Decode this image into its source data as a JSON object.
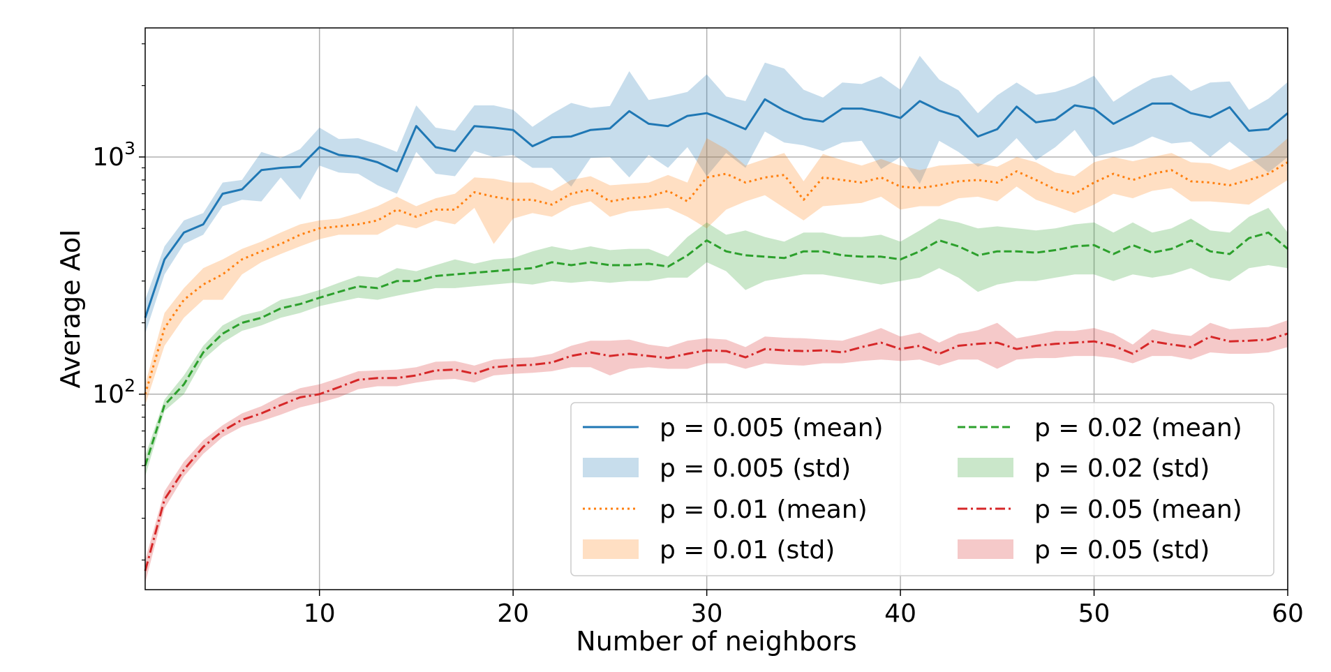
{
  "chart_data": {
    "type": "line",
    "xlabel": "Number of neighbors",
    "ylabel": "Average AoI",
    "xlim": [
      1,
      60
    ],
    "ylim": [
      15,
      3500
    ],
    "yscale": "log",
    "grid": true,
    "legend_position": "lower-right",
    "legend_columns": 2,
    "x_ticks": [
      10,
      20,
      30,
      40,
      50,
      60
    ],
    "y_ticks": [
      {
        "value": 100,
        "base": "10",
        "exp": "2"
      },
      {
        "value": 1000,
        "base": "10",
        "exp": "3"
      }
    ],
    "series": [
      {
        "name": "p = 0.005 (mean)",
        "std_name": "p = 0.005 (std)",
        "color": "#1f77b4",
        "dash": "solid",
        "mean": [
          210,
          370,
          480,
          520,
          700,
          730,
          880,
          900,
          910,
          1100,
          1020,
          1000,
          950,
          870,
          1350,
          1100,
          1060,
          1350,
          1330,
          1300,
          1110,
          1210,
          1220,
          1300,
          1320,
          1560,
          1380,
          1350,
          1490,
          1530,
          1420,
          1310,
          1750,
          1570,
          1450,
          1410,
          1600,
          1600,
          1540,
          1460,
          1720,
          1570,
          1480,
          1220,
          1310,
          1630,
          1400,
          1440,
          1650,
          1600,
          1380,
          1520,
          1680,
          1680,
          1530,
          1470,
          1620,
          1290,
          1310,
          1530
        ],
        "lower": [
          180,
          320,
          430,
          470,
          620,
          660,
          650,
          820,
          660,
          920,
          860,
          850,
          760,
          700,
          1050,
          850,
          830,
          1060,
          1000,
          1020,
          900,
          900,
          750,
          990,
          1000,
          820,
          1020,
          900,
          1100,
          830,
          1040,
          900,
          1280,
          1150,
          1120,
          1060,
          1150,
          1170,
          890,
          1000,
          770,
          1170,
          1050,
          910,
          1000,
          1200,
          970,
          1100,
          1300,
          1000,
          1050,
          1110,
          1220,
          1140,
          1160,
          1000,
          1160,
          1000,
          860,
          1000
        ],
        "upper": [
          250,
          420,
          540,
          580,
          780,
          800,
          1050,
          990,
          1080,
          1330,
          1190,
          1200,
          1130,
          1050,
          1650,
          1330,
          1290,
          1650,
          1650,
          1580,
          1340,
          1520,
          1690,
          1610,
          1640,
          2300,
          1740,
          1800,
          1880,
          2230,
          1800,
          1720,
          2500,
          2360,
          1920,
          1780,
          2060,
          2030,
          2190,
          1920,
          2670,
          2120,
          1910,
          1530,
          1820,
          2060,
          1830,
          1880,
          2000,
          2200,
          1710,
          1930,
          2140,
          2220,
          1900,
          2060,
          2080,
          1580,
          1760,
          2070
        ]
      },
      {
        "name": "p = 0.01 (mean)",
        "std_name": "p = 0.01 (std)",
        "color": "#ff7f0e",
        "dash": "dotted",
        "mean": [
          100,
          190,
          250,
          290,
          320,
          370,
          400,
          430,
          470,
          500,
          510,
          520,
          540,
          600,
          560,
          600,
          600,
          710,
          680,
          660,
          660,
          630,
          700,
          730,
          650,
          670,
          680,
          720,
          650,
          820,
          850,
          780,
          820,
          840,
          660,
          820,
          800,
          780,
          820,
          750,
          740,
          760,
          790,
          800,
          780,
          870,
          800,
          730,
          700,
          780,
          850,
          800,
          850,
          880,
          790,
          780,
          760,
          800,
          850,
          950
        ],
        "lower": [
          90,
          160,
          210,
          250,
          250,
          320,
          360,
          390,
          420,
          450,
          470,
          470,
          470,
          520,
          500,
          540,
          520,
          610,
          430,
          550,
          580,
          560,
          620,
          650,
          560,
          590,
          600,
          610,
          560,
          500,
          600,
          650,
          690,
          610,
          540,
          620,
          630,
          640,
          680,
          600,
          620,
          620,
          670,
          680,
          650,
          750,
          660,
          620,
          580,
          630,
          700,
          670,
          720,
          740,
          650,
          650,
          640,
          630,
          710,
          800
        ],
        "upper": [
          110,
          220,
          280,
          340,
          370,
          410,
          440,
          480,
          520,
          540,
          550,
          580,
          620,
          680,
          620,
          670,
          700,
          820,
          810,
          780,
          780,
          720,
          800,
          830,
          760,
          770,
          780,
          840,
          780,
          1200,
          1080,
          920,
          980,
          1040,
          790,
          1030,
          970,
          920,
          980,
          920,
          880,
          920,
          930,
          940,
          910,
          1000,
          950,
          860,
          830,
          950,
          1000,
          960,
          1000,
          1040,
          950,
          940,
          880,
          950,
          1020,
          1200
        ]
      },
      {
        "name": "p = 0.02 (mean)",
        "std_name": "p = 0.02 (std)",
        "color": "#2ca02c",
        "dash": "dashed",
        "mean": [
          50,
          90,
          110,
          150,
          180,
          200,
          210,
          230,
          240,
          255,
          270,
          285,
          280,
          300,
          300,
          315,
          320,
          325,
          330,
          335,
          340,
          360,
          350,
          360,
          350,
          350,
          355,
          345,
          385,
          445,
          400,
          385,
          380,
          375,
          400,
          400,
          385,
          380,
          380,
          370,
          400,
          445,
          420,
          385,
          400,
          400,
          395,
          405,
          420,
          425,
          390,
          425,
          395,
          410,
          445,
          400,
          390,
          455,
          480,
          410
        ],
        "lower": [
          45,
          85,
          100,
          140,
          165,
          185,
          195,
          210,
          220,
          235,
          245,
          255,
          250,
          260,
          270,
          280,
          280,
          285,
          290,
          295,
          290,
          300,
          295,
          300,
          295,
          300,
          300,
          310,
          310,
          360,
          330,
          275,
          300,
          310,
          320,
          320,
          310,
          300,
          290,
          300,
          310,
          340,
          310,
          270,
          290,
          300,
          300,
          310,
          320,
          320,
          300,
          320,
          310,
          320,
          340,
          310,
          300,
          340,
          350,
          340
        ],
        "upper": [
          55,
          95,
          120,
          160,
          195,
          215,
          225,
          250,
          260,
          275,
          295,
          315,
          310,
          340,
          330,
          350,
          370,
          355,
          370,
          375,
          400,
          420,
          405,
          420,
          405,
          410,
          410,
          380,
          460,
          530,
          470,
          490,
          460,
          440,
          480,
          480,
          460,
          460,
          470,
          440,
          490,
          550,
          530,
          500,
          510,
          500,
          490,
          500,
          520,
          530,
          480,
          530,
          480,
          500,
          550,
          490,
          480,
          560,
          610,
          480
        ]
      },
      {
        "name": "p = 0.05 (mean)",
        "std_name": "p = 0.05 (std)",
        "color": "#d62728",
        "dash": "dashdot",
        "mean": [
          18,
          36,
          48,
          60,
          70,
          78,
          83,
          90,
          97,
          100,
          107,
          115,
          117,
          117,
          120,
          126,
          127,
          122,
          130,
          132,
          133,
          136,
          145,
          150,
          145,
          148,
          145,
          142,
          148,
          153,
          152,
          143,
          155,
          153,
          152,
          153,
          150,
          158,
          165,
          155,
          160,
          148,
          160,
          163,
          165,
          155,
          160,
          163,
          165,
          167,
          160,
          148,
          167,
          162,
          158,
          175,
          167,
          168,
          170,
          180
        ],
        "lower": [
          16,
          33,
          45,
          56,
          66,
          73,
          77,
          82,
          88,
          92,
          97,
          105,
          108,
          108,
          112,
          115,
          116,
          112,
          120,
          122,
          123,
          125,
          130,
          130,
          120,
          128,
          130,
          128,
          128,
          135,
          135,
          128,
          135,
          133,
          132,
          135,
          135,
          138,
          140,
          138,
          140,
          132,
          140,
          140,
          128,
          140,
          142,
          142,
          145,
          145,
          142,
          135,
          145,
          145,
          140,
          150,
          148,
          148,
          150,
          158
        ],
        "upper": [
          20,
          39,
          52,
          64,
          74,
          83,
          89,
          98,
          106,
          110,
          117,
          125,
          126,
          127,
          130,
          137,
          138,
          132,
          140,
          142,
          143,
          148,
          160,
          168,
          168,
          170,
          162,
          158,
          168,
          172,
          170,
          158,
          175,
          173,
          172,
          170,
          168,
          178,
          190,
          175,
          182,
          165,
          180,
          186,
          200,
          172,
          178,
          185,
          185,
          190,
          180,
          162,
          188,
          180,
          176,
          200,
          188,
          190,
          192,
          205
        ]
      }
    ]
  }
}
